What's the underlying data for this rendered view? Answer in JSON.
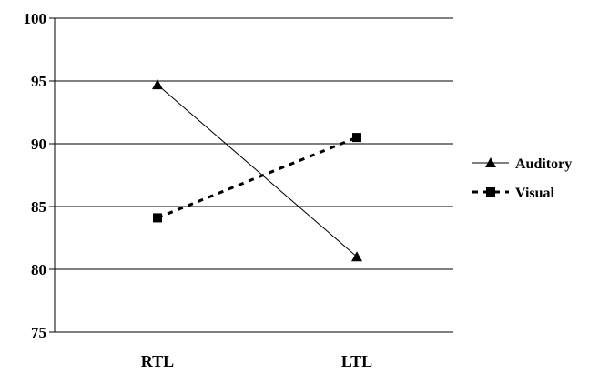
{
  "chart_data": {
    "type": "line",
    "title": "",
    "xlabel": "",
    "ylabel": "",
    "categories": [
      "RTL",
      "LTL"
    ],
    "ylim": [
      75,
      100
    ],
    "yticks": [
      75,
      80,
      85,
      90,
      95,
      100
    ],
    "grid": true,
    "legend_position": "right",
    "series": [
      {
        "name": "Auditory",
        "values": [
          94.7,
          81.0
        ],
        "marker": "triangle",
        "line_style": "solid",
        "color": "#000000"
      },
      {
        "name": "Visual",
        "values": [
          84.1,
          90.5
        ],
        "marker": "square",
        "line_style": "dashed",
        "color": "#000000"
      }
    ]
  }
}
